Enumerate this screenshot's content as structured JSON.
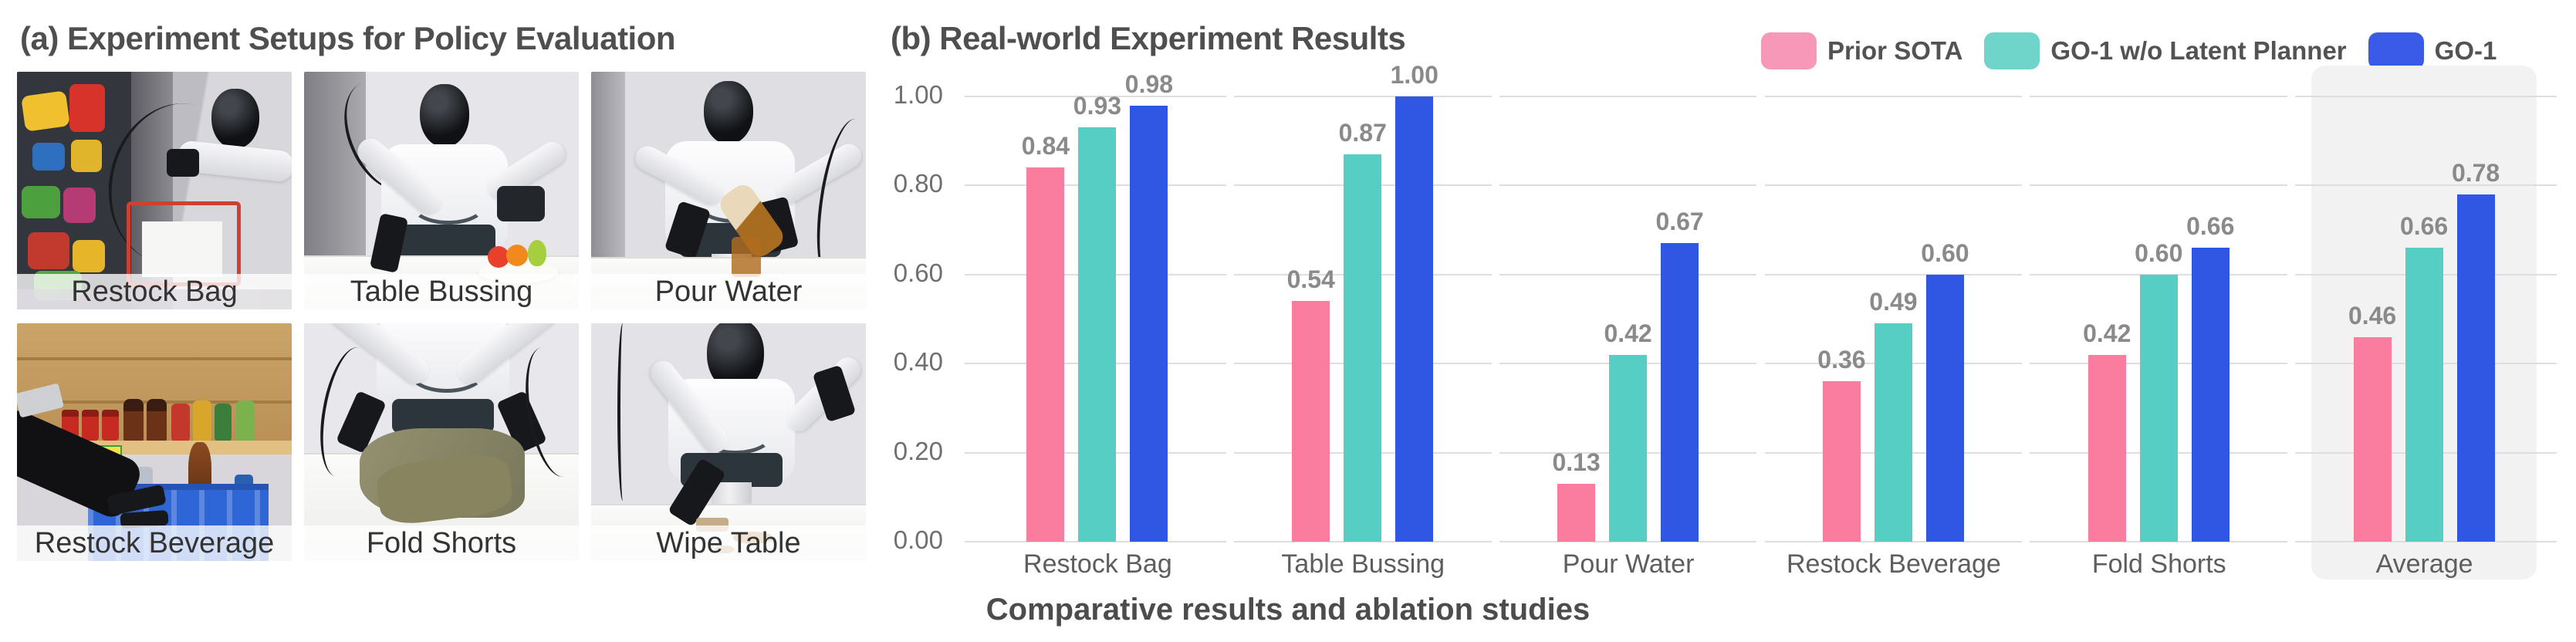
{
  "panel_a": {
    "title": "(a) Experiment Setups for Policy Evaluation"
  },
  "photos": {
    "items": [
      {
        "label": "Restock Bag"
      },
      {
        "label": "Table Bussing"
      },
      {
        "label": "Pour Water"
      },
      {
        "label": "Restock Beverage"
      },
      {
        "label": "Fold Shorts"
      },
      {
        "label": "Wipe Table"
      }
    ]
  },
  "panel_b": {
    "title": "(b) Real-world Experiment Results"
  },
  "caption": "Comparative results and ablation studies",
  "chart_data": {
    "type": "bar",
    "categories": [
      "Restock Bag",
      "Table Bussing",
      "Pour Water",
      "Restock Beverage",
      "Fold Shorts",
      "Average"
    ],
    "series": [
      {
        "name": "Prior SOTA",
        "color": "#FA7C9E",
        "legend_color": "#F898B8",
        "values": [
          0.84,
          0.54,
          0.13,
          0.36,
          0.42,
          0.46
        ]
      },
      {
        "name": "GO-1 w/o Latent Planner",
        "color": "#57CEC4",
        "legend_color": "#6FD5CB",
        "values": [
          0.93,
          0.87,
          0.42,
          0.49,
          0.6,
          0.66
        ]
      },
      {
        "name": "GO-1",
        "color": "#2F57E4",
        "legend_color": "#3A5BE8",
        "values": [
          0.98,
          1.0,
          0.67,
          0.6,
          0.66,
          0.78
        ]
      }
    ],
    "title": "(b) Real-world Experiment Results",
    "xlabel": "",
    "ylabel": "",
    "ylim": [
      0.0,
      1.0
    ],
    "y_ticks": [
      "0.00",
      "0.20",
      "0.40",
      "0.60",
      "0.80",
      "1.00"
    ],
    "grid": "horizontal",
    "legend_position": "top-right",
    "value_labels": true,
    "highlight_category": "Average"
  },
  "colors": {
    "grid": "#DEDEDE",
    "tick_label": "#6F6F6F",
    "value_label": "#8A8A8A",
    "category_label": "#5E5E5E",
    "title": "#4F4F4F",
    "highlight_bg": "#F2F2F3"
  }
}
